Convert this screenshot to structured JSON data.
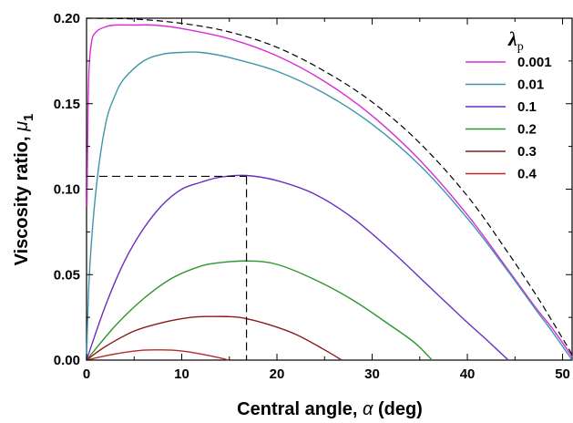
{
  "chart_data": {
    "type": "line",
    "xlabel_prefix": "Central angle, ",
    "xlabel_symbol": "α",
    "xlabel_suffix": " (deg)",
    "ylabel_prefix": "Viscosity ratio, ",
    "ylabel_symbol": "μ",
    "ylabel_subscript": "1",
    "xlim": [
      0,
      51
    ],
    "ylim": [
      0,
      0.2
    ],
    "x_ticks": [
      0,
      10,
      20,
      30,
      40,
      50
    ],
    "x_tick_labels": [
      "0",
      "10",
      "20",
      "30",
      "40",
      "50"
    ],
    "y_ticks": [
      0,
      0.05,
      0.1,
      0.15,
      0.2
    ],
    "y_tick_labels": [
      "0.00",
      "0.05",
      "0.10",
      "0.15",
      "0.20"
    ],
    "legend_title_symbol": "λ",
    "legend_title_subscript": "p",
    "legend_position": "top-right",
    "grid": false,
    "series": [
      {
        "name": "0.001",
        "color": "#d62fd6",
        "values": [
          [
            0.05,
            0.09
          ],
          [
            0.2,
            0.16
          ],
          [
            0.5,
            0.185
          ],
          [
            1,
            0.192
          ],
          [
            2,
            0.195
          ],
          [
            3,
            0.196
          ],
          [
            5,
            0.196
          ],
          [
            7,
            0.196
          ],
          [
            10,
            0.194
          ],
          [
            15,
            0.188
          ],
          [
            20,
            0.178
          ],
          [
            25,
            0.163
          ],
          [
            30,
            0.143
          ],
          [
            35,
            0.117
          ],
          [
            40,
            0.085
          ],
          [
            44,
            0.055
          ],
          [
            47,
            0.032
          ],
          [
            49,
            0.018
          ],
          [
            50.5,
            0.006
          ],
          [
            51,
            0.0015
          ]
        ]
      },
      {
        "name": "0.01",
        "color": "#3f95ad",
        "values": [
          [
            0,
            0.0
          ],
          [
            0.3,
            0.05
          ],
          [
            1,
            0.1
          ],
          [
            2,
            0.138
          ],
          [
            3,
            0.155
          ],
          [
            4,
            0.165
          ],
          [
            6,
            0.175
          ],
          [
            8,
            0.179
          ],
          [
            10,
            0.18
          ],
          [
            12,
            0.18
          ],
          [
            15,
            0.177
          ],
          [
            20,
            0.169
          ],
          [
            25,
            0.156
          ],
          [
            30,
            0.138
          ],
          [
            35,
            0.114
          ],
          [
            40,
            0.083
          ],
          [
            44,
            0.054
          ],
          [
            47,
            0.031
          ],
          [
            49,
            0.016
          ],
          [
            50.5,
            0.004
          ],
          [
            51,
            0.0
          ]
        ]
      },
      {
        "name": "0.1",
        "color": "#6a2ec2",
        "values": [
          [
            0,
            0.0
          ],
          [
            2,
            0.032
          ],
          [
            4,
            0.058
          ],
          [
            6,
            0.077
          ],
          [
            8,
            0.091
          ],
          [
            10,
            0.1
          ],
          [
            12,
            0.104
          ],
          [
            14,
            0.107
          ],
          [
            16.8,
            0.108
          ],
          [
            20,
            0.105
          ],
          [
            24,
            0.097
          ],
          [
            28,
            0.083
          ],
          [
            32,
            0.064
          ],
          [
            36,
            0.043
          ],
          [
            40,
            0.022
          ],
          [
            42,
            0.012
          ],
          [
            44.3,
            0.0
          ]
        ]
      },
      {
        "name": "0.2",
        "color": "#2c962c",
        "values": [
          [
            0,
            0.0
          ],
          [
            3,
            0.02
          ],
          [
            6,
            0.036
          ],
          [
            9,
            0.048
          ],
          [
            12,
            0.055
          ],
          [
            14,
            0.057
          ],
          [
            17,
            0.058
          ],
          [
            20,
            0.056
          ],
          [
            24,
            0.047
          ],
          [
            28,
            0.035
          ],
          [
            32,
            0.02
          ],
          [
            34.5,
            0.01
          ],
          [
            36.3,
            0.0
          ]
        ]
      },
      {
        "name": "0.3",
        "color": "#8b1a1a",
        "values": [
          [
            0,
            0.0
          ],
          [
            2,
            0.008
          ],
          [
            5,
            0.017
          ],
          [
            8,
            0.022
          ],
          [
            11,
            0.025
          ],
          [
            13,
            0.0255
          ],
          [
            16,
            0.025
          ],
          [
            19,
            0.021
          ],
          [
            22,
            0.015
          ],
          [
            25,
            0.006
          ],
          [
            26.8,
            0.0
          ]
        ]
      },
      {
        "name": "0.4",
        "color": "#b52a2a",
        "values": [
          [
            0,
            0.0
          ],
          [
            2,
            0.0025
          ],
          [
            4,
            0.0045
          ],
          [
            6,
            0.0058
          ],
          [
            7.5,
            0.006
          ],
          [
            9,
            0.0058
          ],
          [
            11,
            0.0046
          ],
          [
            13,
            0.0025
          ],
          [
            14,
            0.0013
          ],
          [
            14.9,
            0.0
          ]
        ]
      }
    ],
    "envelope": {
      "style": "dashed",
      "color": "#000000",
      "values": [
        [
          0,
          0.2
        ],
        [
          5,
          0.1995
        ],
        [
          10,
          0.197
        ],
        [
          15,
          0.192
        ],
        [
          20,
          0.183
        ],
        [
          25,
          0.169
        ],
        [
          30,
          0.151
        ],
        [
          35,
          0.127
        ],
        [
          40,
          0.096
        ],
        [
          44,
          0.065
        ],
        [
          47,
          0.04
        ],
        [
          49,
          0.022
        ],
        [
          50.5,
          0.008
        ],
        [
          51,
          0.003
        ]
      ]
    },
    "marker_guide": {
      "x": 16.8,
      "y": 0.1075,
      "style": "dashed",
      "color": "#000000"
    }
  }
}
